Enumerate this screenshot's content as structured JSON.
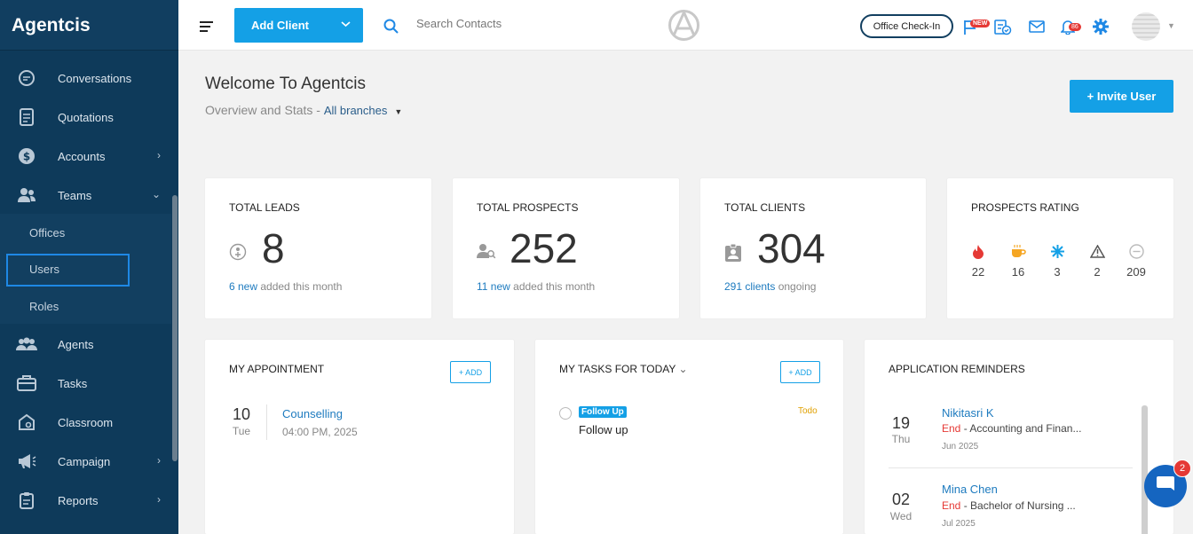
{
  "app": {
    "brand": "Agentcis"
  },
  "sidebar": {
    "items": [
      {
        "label": "Conversations"
      },
      {
        "label": "Quotations"
      },
      {
        "label": "Accounts"
      },
      {
        "label": "Teams"
      },
      {
        "label": "Agents"
      },
      {
        "label": "Tasks"
      },
      {
        "label": "Classroom"
      },
      {
        "label": "Campaign"
      },
      {
        "label": "Reports"
      }
    ],
    "teams_sub": [
      {
        "label": "Offices"
      },
      {
        "label": "Users"
      },
      {
        "label": "Roles"
      }
    ]
  },
  "topbar": {
    "add_client": "Add Client",
    "search_placeholder": "Search Contacts",
    "office_checkin": "Office Check-In",
    "new_badge": "NEW",
    "notif_count": "86"
  },
  "header": {
    "title": "Welcome To Agentcis",
    "subtitle": "Overview and Stats - ",
    "branch": "All branches",
    "invite_user": "+  Invite User"
  },
  "stats": {
    "leads": {
      "title": "TOTAL LEADS",
      "value": "8",
      "foot_link": "6 new",
      "foot_text": " added this month"
    },
    "prospects": {
      "title": "TOTAL PROSPECTS",
      "value": "252",
      "foot_link": "11 new",
      "foot_text": " added this month"
    },
    "clients": {
      "title": "TOTAL CLIENTS",
      "value": "304",
      "foot_link": "291 clients",
      "foot_text": " ongoing"
    },
    "rating": {
      "title": "PROSPECTS RATING",
      "items": [
        {
          "icon": "fire-icon",
          "value": "22",
          "color": "#e53935"
        },
        {
          "icon": "coffee-icon",
          "value": "16",
          "color": "#f5a623"
        },
        {
          "icon": "snowflake-icon",
          "value": "3",
          "color": "#14a0e6"
        },
        {
          "icon": "warning-icon",
          "value": "2",
          "color": "#555555"
        },
        {
          "icon": "minus-circle-icon",
          "value": "209",
          "color": "#bbbbbb"
        }
      ]
    }
  },
  "appointment": {
    "title": "MY APPOINTMENT",
    "add": "+ ADD",
    "day": "10",
    "weekday": "Tue",
    "event": "Counselling",
    "time": "04:00 PM, 2025"
  },
  "tasks": {
    "title": "MY TASKS FOR  TODAY",
    "add": "+ ADD",
    "tag": "Follow Up",
    "name": "Follow up",
    "status": "Todo"
  },
  "reminders": {
    "title": "APPLICATION REMINDERS",
    "items": [
      {
        "day": "19",
        "weekday": "Thu",
        "name": "Nikitasri K",
        "end": "End",
        "desc": " - Accounting and Finan...",
        "date": "Jun 2025"
      },
      {
        "day": "02",
        "weekday": "Wed",
        "name": "Mina Chen",
        "end": "End",
        "desc": " - Bachelor of Nursing ...",
        "date": "Jul 2025"
      }
    ]
  },
  "chat": {
    "count": "2"
  },
  "colors": {
    "sidebar": "#0e3a5a",
    "accent": "#14a0e6",
    "danger": "#e53935"
  }
}
